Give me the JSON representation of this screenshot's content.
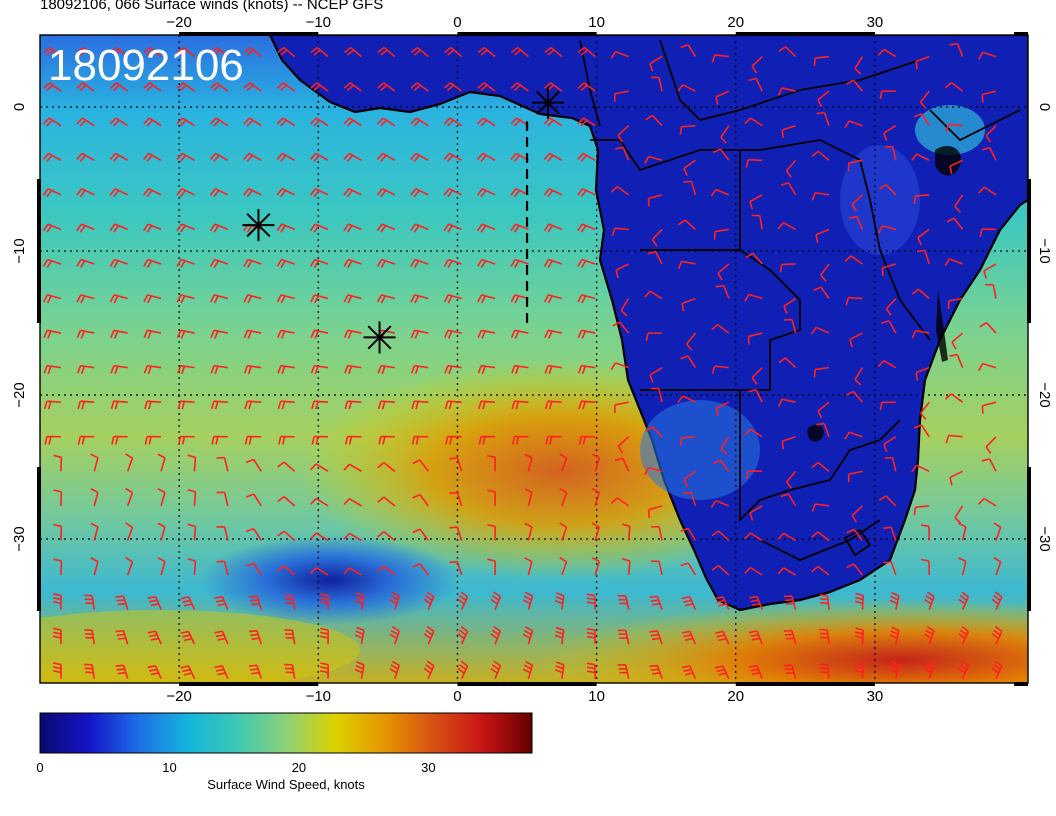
{
  "title": "18092106, 066 Surface winds (knots) -- NCEP GFS",
  "stamp": "18092106",
  "map": {
    "lon_range": [
      -30,
      41
    ],
    "lat_range": [
      -40,
      5
    ],
    "lon_ticks": [
      -20,
      -10,
      0,
      10,
      20,
      30
    ],
    "lat_ticks": [
      0,
      -10,
      -20,
      -30
    ],
    "lon_tick_labels": [
      "−20",
      "−10",
      "0",
      "10",
      "20",
      "30"
    ],
    "lat_tick_labels": [
      "0",
      "−10",
      "−20",
      "−30"
    ],
    "grid": true,
    "barb_color": "#ff2020",
    "markers": [
      {
        "lon": 6.5,
        "lat": 0.3
      },
      {
        "lon": -14.3,
        "lat": -8.2
      },
      {
        "lon": -5.6,
        "lat": -16.0
      }
    ],
    "track": [
      [
        5.0,
        -15.0
      ],
      [
        5.0,
        -1.0
      ]
    ]
  },
  "colorbar": {
    "label": "Surface Wind Speed, knots",
    "min": 0,
    "max": 38,
    "ticks": [
      0,
      10,
      20,
      30
    ],
    "tick_labels": [
      "0",
      "10",
      "20",
      "30"
    ],
    "colors": [
      "#0a0a6e",
      "#1414c8",
      "#1e6ee6",
      "#14b4dc",
      "#3cc8b4",
      "#8cd278",
      "#dcd200",
      "#e69600",
      "#d75014",
      "#c81414",
      "#640000"
    ]
  }
}
